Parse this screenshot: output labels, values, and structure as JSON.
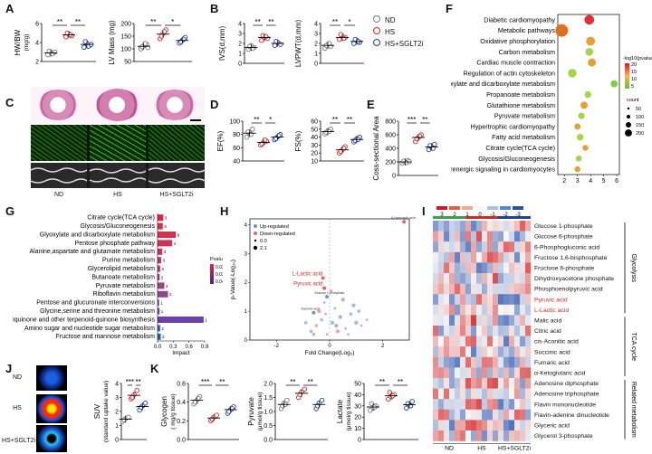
{
  "panel_labels": [
    "A",
    "B",
    "C",
    "D",
    "E",
    "F",
    "G",
    "H",
    "I",
    "J",
    "K"
  ],
  "groups": [
    "ND",
    "HS",
    "HS+SGLT2i"
  ],
  "colors": {
    "nd": "#777777",
    "hs": "#d62728",
    "sglt": "#1f3ea0",
    "bar_gradient_low": "#1f3ea0",
    "bar_gradient_high": "#e31a1c"
  },
  "legend": {
    "items": [
      "ND",
      "HS",
      "HS+SGLT2i"
    ]
  },
  "chart_data": [
    {
      "id": "hwbw",
      "type": "scatter",
      "ylabel": "HW/BW",
      "ylabel_unit": "(mg/g)",
      "yticks": [
        "2",
        "4",
        "6"
      ],
      "ylim": [
        2,
        6
      ],
      "sig": [
        "**",
        "**"
      ],
      "series": [
        {
          "name": "ND",
          "values": [
            2.7,
            3.0,
            2.9,
            3.1,
            2.8,
            3.0
          ],
          "mean": 2.9
        },
        {
          "name": "HS",
          "values": [
            4.6,
            4.9,
            4.7,
            5.0,
            4.8
          ],
          "mean": 4.8
        },
        {
          "name": "HS+SGLT2i",
          "values": [
            3.5,
            3.9,
            3.7,
            4.1,
            3.6,
            3.8
          ],
          "mean": 3.8
        }
      ]
    },
    {
      "id": "lvmass",
      "type": "scatter",
      "ylabel": "LV Mass (mg)",
      "yticks": [
        "50",
        "100",
        "150",
        "200"
      ],
      "ylim": [
        50,
        200
      ],
      "sig": [
        "**",
        "*"
      ],
      "series": [
        {
          "name": "ND",
          "values": [
            100,
            112,
            118,
            108,
            121,
            105
          ],
          "mean": 110
        },
        {
          "name": "HS",
          "values": [
            140,
            160,
            175,
            150,
            168
          ],
          "mean": 158
        },
        {
          "name": "HS+SGLT2i",
          "values": [
            122,
            134,
            145,
            128,
            138
          ],
          "mean": 133
        }
      ]
    },
    {
      "id": "ivsd",
      "type": "scatter",
      "ylabel": "IVS(d,mm)",
      "yticks": [
        "0",
        "1",
        "2",
        "3",
        "4"
      ],
      "ylim": [
        0,
        4
      ],
      "sig": [
        "**",
        "**"
      ],
      "series": [
        {
          "name": "ND",
          "values": [
            1.4,
            1.8,
            1.6,
            1.7,
            1.5
          ],
          "mean": 1.6
        },
        {
          "name": "HS",
          "values": [
            2.3,
            2.6,
            2.5,
            2.8,
            2.7
          ],
          "mean": 2.6
        },
        {
          "name": "HS+SGLT2i",
          "values": [
            1.8,
            2.1,
            1.9,
            2.2
          ],
          "mean": 2.0
        }
      ]
    },
    {
      "id": "lvpwt",
      "type": "scatter",
      "ylabel": "LVPWT(d,mm)",
      "yticks": [
        "0",
        "1",
        "2",
        "3",
        "4"
      ],
      "ylim": [
        0,
        4
      ],
      "sig": [
        "**",
        "*"
      ],
      "series": [
        {
          "name": "ND",
          "values": [
            1.5,
            1.9,
            1.7,
            1.8,
            2.0
          ],
          "mean": 1.8
        },
        {
          "name": "HS",
          "values": [
            2.4,
            2.7,
            2.6,
            2.9,
            2.5
          ],
          "mean": 2.6
        },
        {
          "name": "HS+SGLT2i",
          "values": [
            2.0,
            2.3,
            2.1,
            2.4,
            2.2
          ],
          "mean": 2.2
        }
      ]
    },
    {
      "id": "ef",
      "type": "scatter",
      "ylabel": "EF(%)",
      "yticks": [
        "40",
        "60",
        "80",
        "100"
      ],
      "ylim": [
        40,
        100
      ],
      "sig": [
        "**",
        "*"
      ],
      "series": [
        {
          "name": "ND",
          "values": [
            76,
            82,
            88,
            84,
            80
          ],
          "mean": 82
        },
        {
          "name": "HS",
          "values": [
            64,
            68,
            70,
            66,
            72
          ],
          "mean": 68
        },
        {
          "name": "HS+SGLT2i",
          "values": [
            72,
            76,
            80,
            74,
            78
          ],
          "mean": 76
        }
      ]
    },
    {
      "id": "fs",
      "type": "scatter",
      "ylabel": "FS(%)",
      "yticks": [
        "10",
        "20",
        "30",
        "40",
        "50",
        "60"
      ],
      "ylim": [
        10,
        60
      ],
      "sig": [
        "**",
        "**"
      ],
      "series": [
        {
          "name": "ND",
          "values": [
            44,
            48,
            50,
            46,
            47
          ],
          "mean": 47
        },
        {
          "name": "HS",
          "values": [
            20,
            24,
            28,
            22,
            26
          ],
          "mean": 24
        },
        {
          "name": "HS+SGLT2i",
          "values": [
            34,
            38,
            40,
            36,
            37
          ],
          "mean": 37
        }
      ]
    },
    {
      "id": "csa",
      "type": "scatter",
      "ylabel": "Coss-sectional Area",
      "yticks": [
        "0",
        "200",
        "400",
        "600",
        "800"
      ],
      "ylim": [
        0,
        800
      ],
      "sig": [
        "***",
        "**"
      ],
      "series": [
        {
          "name": "ND",
          "values": [
            180,
            200,
            220,
            210,
            190,
            205
          ],
          "mean": 200
        },
        {
          "name": "HS",
          "values": [
            500,
            560,
            600,
            540,
            580
          ],
          "mean": 560
        },
        {
          "name": "HS+SGLT2i",
          "values": [
            380,
            420,
            460,
            440,
            400
          ],
          "mean": 420
        }
      ]
    },
    {
      "id": "suv",
      "type": "scatter",
      "ylabel": "SUV",
      "ylabel_unit": "(standard uptake value)",
      "yticks": [
        "0",
        "1",
        "2",
        "3",
        "4"
      ],
      "ylim": [
        0,
        4
      ],
      "sig": [
        "***",
        "**"
      ],
      "series": [
        {
          "name": "ND",
          "values": [
            1.3,
            1.5,
            1.6,
            1.4
          ],
          "mean": 1.45
        },
        {
          "name": "HS",
          "values": [
            2.9,
            3.2,
            3.5,
            3.0
          ],
          "mean": 3.15
        },
        {
          "name": "HS+SGLT2i",
          "values": [
            2.1,
            2.4,
            2.6,
            2.3
          ],
          "mean": 2.35
        }
      ]
    },
    {
      "id": "glycogen",
      "type": "scatter",
      "ylabel": "Glycogen",
      "ylabel_unit": "( mg/g tissue)",
      "yticks": [
        "0.0",
        "0.2",
        "0.4",
        "0.6"
      ],
      "ylim": [
        0,
        0.6
      ],
      "sig": [
        "***",
        "**"
      ],
      "series": [
        {
          "name": "ND",
          "values": [
            0.38,
            0.42,
            0.46,
            0.4,
            0.44
          ],
          "mean": 0.42
        },
        {
          "name": "HS",
          "values": [
            0.2,
            0.24,
            0.26,
            0.22
          ],
          "mean": 0.23
        },
        {
          "name": "HS+SGLT2i",
          "values": [
            0.28,
            0.32,
            0.35,
            0.3,
            0.33
          ],
          "mean": 0.32
        }
      ]
    },
    {
      "id": "pyruvate",
      "type": "scatter",
      "ylabel": "Pyruvate",
      "ylabel_unit": "(μmol/g tissue)",
      "yticks": [
        "0.0",
        "0.5",
        "1.0",
        "1.5",
        "2.0"
      ],
      "ylim": [
        0,
        2
      ],
      "sig": [
        "**",
        "**"
      ],
      "series": [
        {
          "name": "ND",
          "values": [
            1.1,
            1.3,
            1.4,
            1.2,
            1.25
          ],
          "mean": 1.25
        },
        {
          "name": "HS",
          "values": [
            1.5,
            1.7,
            1.8,
            1.6
          ],
          "mean": 1.65
        },
        {
          "name": "HS+SGLT2i",
          "values": [
            1.1,
            1.3,
            1.4,
            1.2
          ],
          "mean": 1.25
        }
      ]
    },
    {
      "id": "lactate",
      "type": "scatter",
      "ylabel": "Lactate",
      "ylabel_unit": "(μmol/g tissue)",
      "yticks": [
        "0",
        "10",
        "20",
        "30",
        "40",
        "50"
      ],
      "ylim": [
        0,
        50
      ],
      "sig": [
        "**",
        "**"
      ],
      "series": [
        {
          "name": "ND",
          "values": [
            26,
            28,
            30,
            32,
            29
          ],
          "mean": 29
        },
        {
          "name": "HS",
          "values": [
            36,
            38,
            40,
            42,
            39
          ],
          "mean": 39
        },
        {
          "name": "HS+SGLT2i",
          "values": [
            28,
            31,
            34,
            32,
            30
          ],
          "mean": 31
        }
      ]
    },
    {
      "id": "kegg_f",
      "type": "bubble",
      "xticks": [
        "2",
        "3",
        "4",
        "5",
        "6"
      ],
      "xlim": [
        1.5,
        6.2
      ],
      "categories": [
        "Diabetic cardiomyopathy",
        "Metabolic pathways",
        "Oxidative phosphorylation",
        "Carbon metabolism",
        "Cardiac muscle contraction",
        "Regulation of actin cytoskeleton",
        "Glyoxylate and dicarboxylate metabolism",
        "Propanoate metabolism",
        "Glutathione metabolism",
        "Pyruvate metabolism",
        "Hypertrophic cardiomyopathy",
        "Fatty acid metabolism",
        "Citrate cycle(TCA cycle)",
        "Glycosis/Gluconeogenesis",
        "Adrenergic signaling in cardiomyocytes"
      ],
      "x": [
        3.9,
        1.8,
        4.0,
        3.9,
        4.1,
        2.6,
        5.8,
        3.8,
        3.5,
        3.3,
        3.0,
        3.2,
        3.6,
        3.1,
        3.0
      ],
      "size": [
        150,
        300,
        120,
        80,
        90,
        110,
        60,
        50,
        60,
        45,
        40,
        50,
        30,
        35,
        30
      ],
      "legend_title": "-log10(pvalue)",
      "legend_ticks": [
        "20",
        "15",
        "10",
        "5"
      ],
      "size_legend_title": "count",
      "size_legend": [
        "50",
        "100",
        "150",
        "200"
      ]
    },
    {
      "id": "impact_g",
      "type": "bar",
      "xlabel": "Impact",
      "xticks": [
        "0.0",
        "0.3",
        "0.6",
        "0.9"
      ],
      "xlim": [
        0,
        0.9
      ],
      "categories": [
        "Citrate cycle(TCA cycle)",
        "Glycosis/Gluconeogenesis",
        "Glyoxylate and dicarboxylate metabolism",
        "Pentose phosphate pathway",
        "Alanine,aspartate and glutamate metabolism",
        "Purine metabolism",
        "Glycerolipid metabolism",
        "Butanoate metabolism",
        "Pyruvate metabolism",
        "Riboflavin metabolism",
        "Pentose and glucuronate interconversions",
        "Glycine,serine and threonine metabolism",
        "Ubiquinone and other terpenoid-quinone biosynthesis",
        "Amino sugar and nucleotide sugar metabolism",
        "Fructose and mannose metabolism"
      ],
      "values": [
        0.11,
        0.1,
        0.35,
        0.28,
        0.09,
        0.07,
        0.05,
        0.04,
        0.13,
        0.2,
        0.03,
        0.04,
        0.88,
        0.05,
        0.06
      ],
      "labels": [
        "3",
        "3",
        "6",
        "4",
        "3",
        "3",
        "3",
        "2",
        "4",
        "2",
        "1",
        "1",
        "1",
        "2",
        "2"
      ],
      "pvalue": [
        0.001,
        0.001,
        0.002,
        0.003,
        0.004,
        0.005,
        0.005,
        0.006,
        0.008,
        0.02,
        0.03,
        0.035,
        0.04,
        0.05,
        0.05
      ],
      "legend_title": "Pvalue",
      "legend_ticks": [
        "0.02",
        "0.03",
        "0.04"
      ]
    },
    {
      "id": "volcano_h",
      "type": "scatter",
      "xlabel": "Fold Change(Log",
      "ylabel": "p-Value(-Log",
      "legend": [
        "Up-regulated",
        "Down-regulated"
      ],
      "size_legend": [
        "0.0",
        "2.1"
      ],
      "xticks": [
        "-2",
        "0",
        "2"
      ],
      "yticks": [
        "0",
        "1",
        "2",
        "3",
        "4"
      ],
      "xlim": [
        -3,
        3
      ],
      "ylim": [
        0,
        4.2
      ],
      "annotated": [
        {
          "label": "L-Lactic acid",
          "x": -0.25,
          "y": 2.15
        },
        {
          "label": "Pyruvic acid",
          "x": -0.2,
          "y": 1.8
        },
        {
          "label": "Succinic acid",
          "x": -0.6,
          "y": 0.95
        },
        {
          "label": "Glucose 1-phosphate",
          "x": -0.1,
          "y": 1.5
        },
        {
          "label": "6-Hydroxylic acid",
          "x": 2.8,
          "y": 4.1
        }
      ]
    },
    {
      "id": "heatmap_i",
      "type": "heatmap",
      "scale_ticks": [
        "3",
        "2",
        "1",
        "0",
        "-1",
        "-2",
        "-3"
      ],
      "rows": [
        "Glucose 1-phosphate",
        "Glucose 6-phosphate",
        "6-Phosphogluconic acid",
        "Fructose 1,6-bisphosphate",
        "Fructose 6-phosphate",
        "Dihydroxyacetone phosphate",
        "Phosphoenolpyruvic acid",
        "Pyruvic acid",
        "L-Lactic acid",
        "Malic acid",
        "Citric acid",
        "cis-Aconitic acid",
        "Succinic acid",
        "Fumaric acid",
        "α-Ketoglutaric acid",
        "Adenosine diphosphate",
        "Adenosine triphosphate",
        "Flavin mononucleotide",
        "Flavin-adenine dinucleotide",
        "Glyceric acid",
        "Glycerol 3-phosphate"
      ],
      "highlight_rows": [
        "Pyruvic acid",
        "L-Lactic acid"
      ],
      "row_groups": [
        {
          "label": "Glycolysis",
          "from": 0,
          "to": 8
        },
        {
          "label": "TCA cycle",
          "from": 9,
          "to": 14
        },
        {
          "label": "Related metabolism",
          "from": 15,
          "to": 20
        }
      ],
      "columns": 18,
      "column_groups": [
        "ND",
        "HS",
        "HS+SGLT2i"
      ]
    }
  ],
  "images": {
    "c_labels": [
      "ND",
      "HS",
      "HS+SGLT2i"
    ],
    "j_labels": [
      "ND",
      "HS",
      "HS+SGLT2i"
    ]
  }
}
